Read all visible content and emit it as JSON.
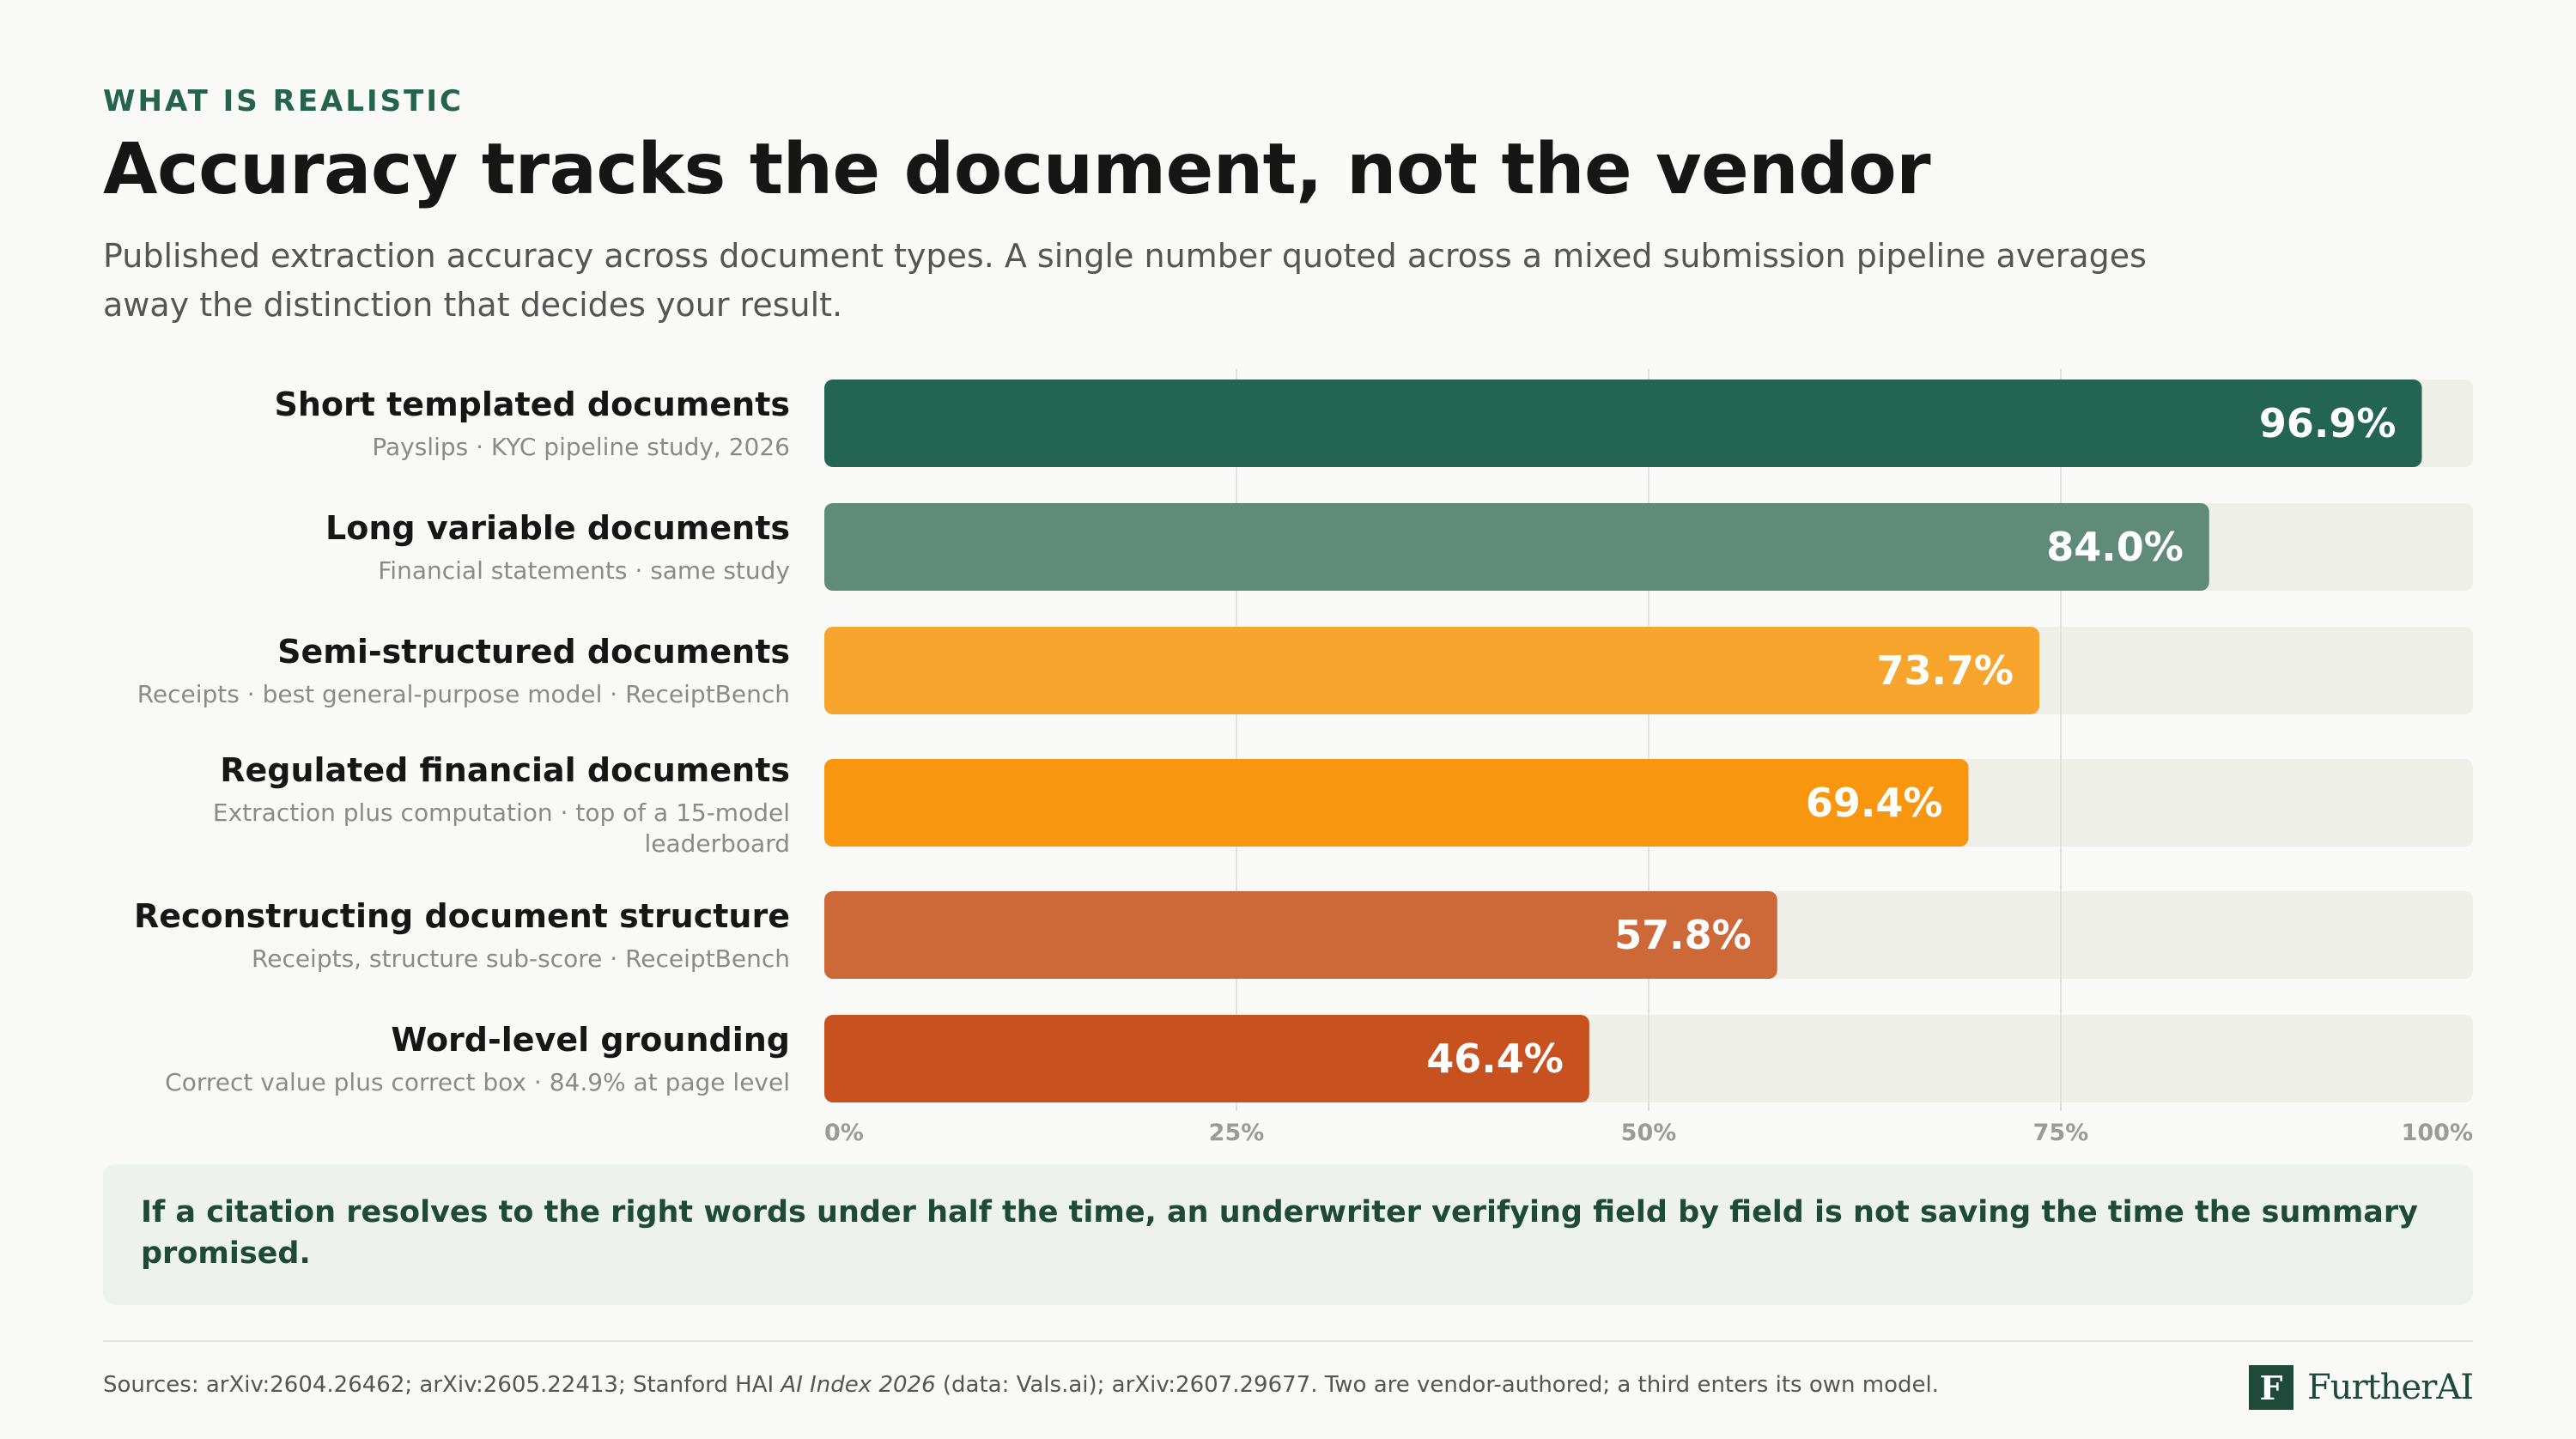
{
  "header": {
    "eyebrow": "WHAT IS REALISTIC",
    "title": "Accuracy tracks the document, not the vendor",
    "subtitle": "Published extraction accuracy across document types. A single number quoted across a mixed submission pipeline averages away the distinction that decides your result."
  },
  "chart_data": {
    "type": "bar",
    "orientation": "horizontal",
    "categories": [
      "Short templated documents",
      "Long variable documents",
      "Semi-structured documents",
      "Regulated financial documents",
      "Reconstructing document structure",
      "Word-level grounding"
    ],
    "sublabels": [
      [
        "Payslips · KYC pipeline study, 2026"
      ],
      [
        "Financial statements · same study"
      ],
      [
        "Receipts · best general-purpose model · ReceiptBench"
      ],
      [
        "Extraction plus computation · top of a 15-model",
        "leaderboard"
      ],
      [
        "Receipts, structure sub-score · ReceiptBench"
      ],
      [
        "Correct value plus correct box · 84.9% at page level"
      ]
    ],
    "values": [
      96.9,
      84.0,
      73.7,
      69.4,
      57.8,
      46.4
    ],
    "value_labels": [
      "96.9%",
      "84.0%",
      "73.7%",
      "69.4%",
      "57.8%",
      "46.4%"
    ],
    "colors": [
      "#236550",
      "#5f8b78",
      "#f8a52d",
      "#f8960f",
      "#cd6838",
      "#c8521f"
    ],
    "track_color": "#efefea",
    "xlim": [
      0,
      100
    ],
    "xticks": [
      0,
      25,
      50,
      75,
      100
    ],
    "xtick_labels": [
      "0%",
      "25%",
      "50%",
      "75%",
      "100%"
    ],
    "grid": true
  },
  "callout": {
    "text": "If a citation resolves to the right words under half the time, an underwriter verifying field by field is not saving the time the summary promised."
  },
  "footer": {
    "sources_prefix": "Sources: arXiv:2604.26462; arXiv:2605.22413; Stanford HAI ",
    "sources_italic": "AI Index 2026",
    "sources_suffix": " (data: Vals.ai); arXiv:2607.29677. Two are vendor-authored; a third enters its own model.",
    "logo_mark": "F",
    "logo_text": "FurtherAI"
  }
}
